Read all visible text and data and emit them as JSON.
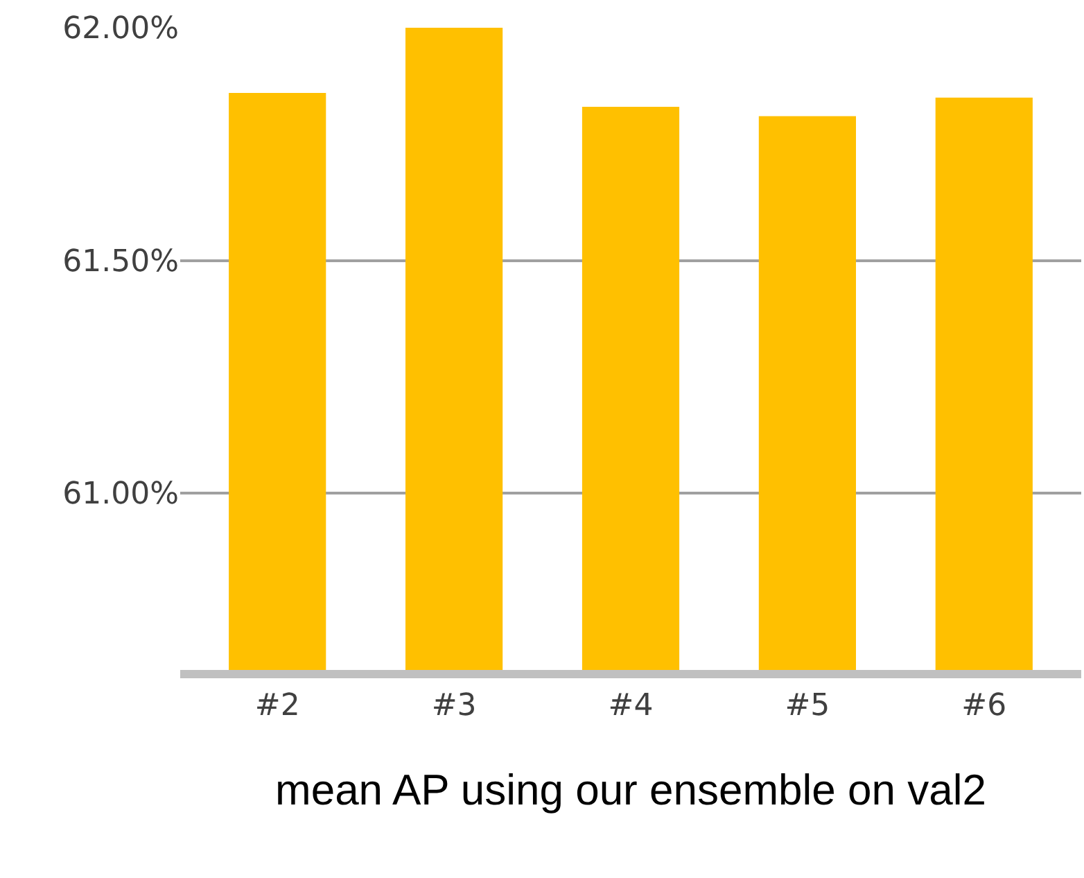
{
  "chart_data": {
    "type": "bar",
    "xlabel": "mean AP using our ensemble on val2",
    "categories": [
      "#2",
      "#3",
      "#4",
      "#5",
      "#6"
    ],
    "values": [
      61.86,
      62.0,
      61.83,
      61.81,
      61.85
    ],
    "color": "#ffc000",
    "ylim": [
      60.62,
      62.0
    ],
    "yticks": [
      {
        "value": 61.0,
        "label": "61.00%"
      },
      {
        "value": 61.5,
        "label": "61.50%"
      },
      {
        "value": 62.0,
        "label": "62.00%"
      }
    ],
    "grid": "y"
  }
}
